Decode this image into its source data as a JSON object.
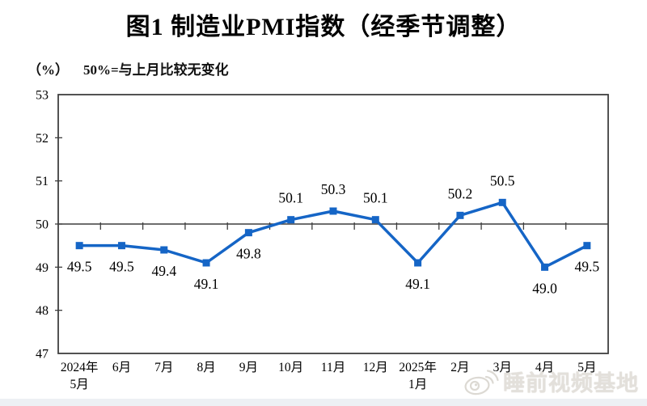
{
  "header": {
    "title": "图1  制造业PMI指数（经季节调整）"
  },
  "chart_data": {
    "type": "line",
    "title": "图1  制造业PMI指数（经季节调整）",
    "unit_label": "（%）",
    "note": "50%=与上月比较无变化",
    "categories": [
      [
        "2024年",
        "5月"
      ],
      [
        "6月"
      ],
      [
        "7月"
      ],
      [
        "8月"
      ],
      [
        "9月"
      ],
      [
        "10月"
      ],
      [
        "11月"
      ],
      [
        "12月"
      ],
      [
        "2025年",
        "1月"
      ],
      [
        "2月"
      ],
      [
        "3月"
      ],
      [
        "4月"
      ],
      [
        "5月"
      ]
    ],
    "values": [
      49.5,
      49.5,
      49.4,
      49.1,
      49.8,
      50.1,
      50.3,
      50.1,
      49.1,
      50.2,
      50.5,
      49.0,
      49.5
    ],
    "label_positions": [
      "below",
      "below",
      "below",
      "below",
      "below",
      "above",
      "above",
      "above",
      "below",
      "above",
      "above",
      "below",
      "below"
    ],
    "ylim": [
      47,
      53
    ],
    "yticks": [
      47,
      48,
      49,
      50,
      51,
      52,
      53
    ],
    "reference_line": 50,
    "grid": false,
    "legend": "none",
    "colors": {
      "line": "#1565c6",
      "axis": "#3f3f3f",
      "label_text": "#000000"
    }
  },
  "watermark": {
    "text": "睡前视频基地",
    "icon": "weibo-icon"
  }
}
